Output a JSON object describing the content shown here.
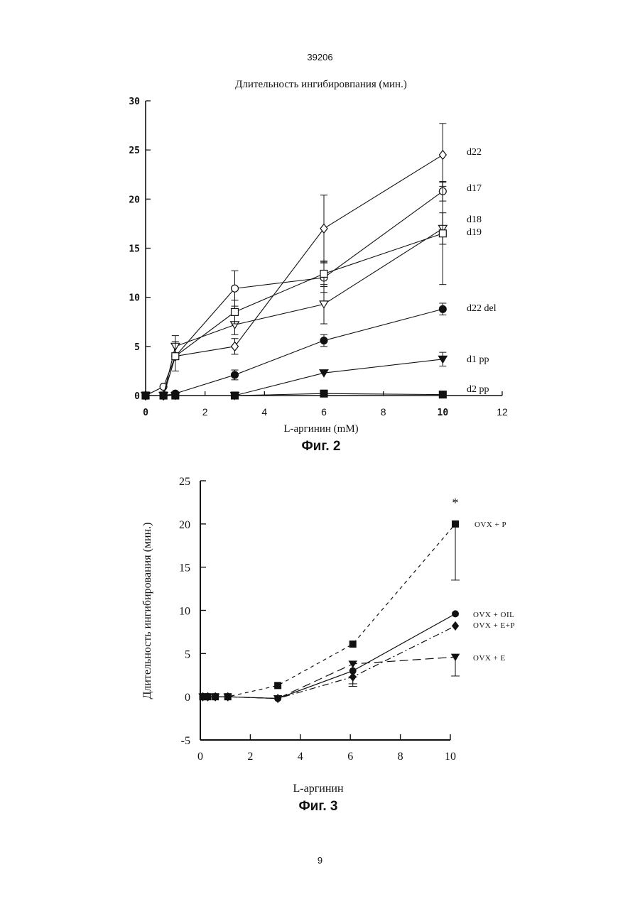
{
  "page": {
    "number_top": "39206",
    "number_bottom": "9"
  },
  "chart_data": [
    {
      "type": "line",
      "title": "Длительность ингибировпания (мин.)",
      "xlabel": "L-аргинин (mM)",
      "ylabel": "",
      "caption": "Фиг. 2",
      "xlim": [
        0,
        12
      ],
      "ylim": [
        0,
        30
      ],
      "xticks": [
        "0",
        "2",
        "4",
        "6",
        "8",
        "10",
        "12"
      ],
      "yticks": [
        "0",
        "5",
        "10",
        "15",
        "20",
        "25",
        "30"
      ],
      "grid": false,
      "legend": "labels at line ends (right)",
      "error_bars": true,
      "series": [
        {
          "name": "d22",
          "marker": "diamond-open",
          "x": [
            0,
            0.6,
            1,
            3,
            6,
            10
          ],
          "y": [
            0,
            0,
            4,
            5,
            17,
            24.5
          ],
          "err": [
            0,
            0,
            0,
            0.8,
            3.4,
            3.2
          ]
        },
        {
          "name": "d17",
          "marker": "circle-open",
          "x": [
            0,
            0.6,
            1,
            3,
            6,
            10
          ],
          "y": [
            0,
            0.9,
            4,
            10.9,
            12,
            20.8
          ],
          "err": [
            0,
            0,
            0,
            1.8,
            1.5,
            1
          ]
        },
        {
          "name": "d18",
          "marker": "triangle-down-open",
          "x": [
            0,
            0.6,
            1,
            3,
            6,
            10
          ],
          "y": [
            0,
            0,
            5,
            7.2,
            9.3,
            17
          ],
          "err": [
            0,
            0,
            1.1,
            1,
            2,
            1.6
          ]
        },
        {
          "name": "d19",
          "marker": "square-open",
          "x": [
            0,
            0.6,
            1,
            3,
            6,
            10
          ],
          "y": [
            0,
            0,
            4,
            8.5,
            12.4,
            16.5
          ],
          "err": [
            0,
            0,
            1.5,
            1.2,
            1.3,
            5.2
          ]
        },
        {
          "name": "d22 del",
          "marker": "circle-filled",
          "x": [
            0,
            0.6,
            1,
            3,
            6,
            10
          ],
          "y": [
            0,
            0,
            0.2,
            2.1,
            5.6,
            8.8
          ],
          "err": [
            0,
            0,
            0,
            0.5,
            0.6,
            0.6
          ]
        },
        {
          "name": "d1 pp",
          "marker": "triangle-down-filled",
          "x": [
            0,
            0.6,
            1,
            3,
            6,
            10
          ],
          "y": [
            0,
            0,
            0,
            0,
            2.3,
            3.7
          ],
          "err": [
            0,
            0,
            0,
            0,
            0,
            0.7
          ]
        },
        {
          "name": "d2 pp",
          "marker": "square-filled",
          "x": [
            0,
            0.6,
            1,
            3,
            6,
            10
          ],
          "y": [
            0,
            0,
            0,
            0,
            0.2,
            0.1
          ],
          "err": [
            0,
            0,
            0,
            0,
            0,
            0
          ]
        }
      ]
    },
    {
      "type": "line",
      "title": "",
      "xlabel": "L-аргинин",
      "ylabel": "Длительность ингибирования (мин.)",
      "caption": "Фиг. 3",
      "xlim": [
        0,
        10
      ],
      "ylim": [
        -5,
        25
      ],
      "xticks": [
        "0",
        "2",
        "4",
        "6",
        "8",
        "10"
      ],
      "yticks": [
        "-5",
        "0",
        "5",
        "10",
        "15",
        "20",
        "25"
      ],
      "grid": false,
      "legend": "labels at line ends (right)",
      "annotation": "*",
      "error_bars": true,
      "series": [
        {
          "name": "OVX + P",
          "marker": "square-filled",
          "style": "dashed",
          "x": [
            0.1,
            0.3,
            0.6,
            1.1,
            3.1,
            6.1,
            10.2
          ],
          "y": [
            0,
            0,
            0,
            0,
            1.3,
            6.1,
            20
          ],
          "err": [
            0,
            0,
            0,
            0,
            0,
            0,
            6.5
          ]
        },
        {
          "name": "OVX + OIL",
          "marker": "circle-filled",
          "style": "solid",
          "x": [
            0.1,
            0.3,
            0.6,
            1.1,
            3.1,
            6.1,
            10.2
          ],
          "y": [
            0,
            0,
            0,
            0,
            -0.2,
            3,
            9.6
          ],
          "err": [
            0,
            0,
            0,
            0,
            0,
            1.8,
            0
          ]
        },
        {
          "name": "OVX + E+P",
          "marker": "diamond-filled",
          "style": "dashdot",
          "x": [
            0.1,
            0.3,
            0.6,
            1.1,
            3.1,
            6.1,
            10.2
          ],
          "y": [
            0,
            0,
            0,
            0,
            -0.2,
            2.3,
            8.2
          ],
          "err": [
            0,
            0,
            0,
            0,
            0,
            0.8,
            0
          ]
        },
        {
          "name": "OVX + E",
          "marker": "triangle-down-filled",
          "style": "longdash",
          "x": [
            0.1,
            0.3,
            0.6,
            1.1,
            3.1,
            6.1,
            10.2
          ],
          "y": [
            0,
            0,
            0,
            0,
            -0.2,
            3.8,
            4.6
          ],
          "err": [
            0,
            0,
            0,
            0,
            0,
            1.5,
            2.2
          ]
        }
      ]
    }
  ]
}
